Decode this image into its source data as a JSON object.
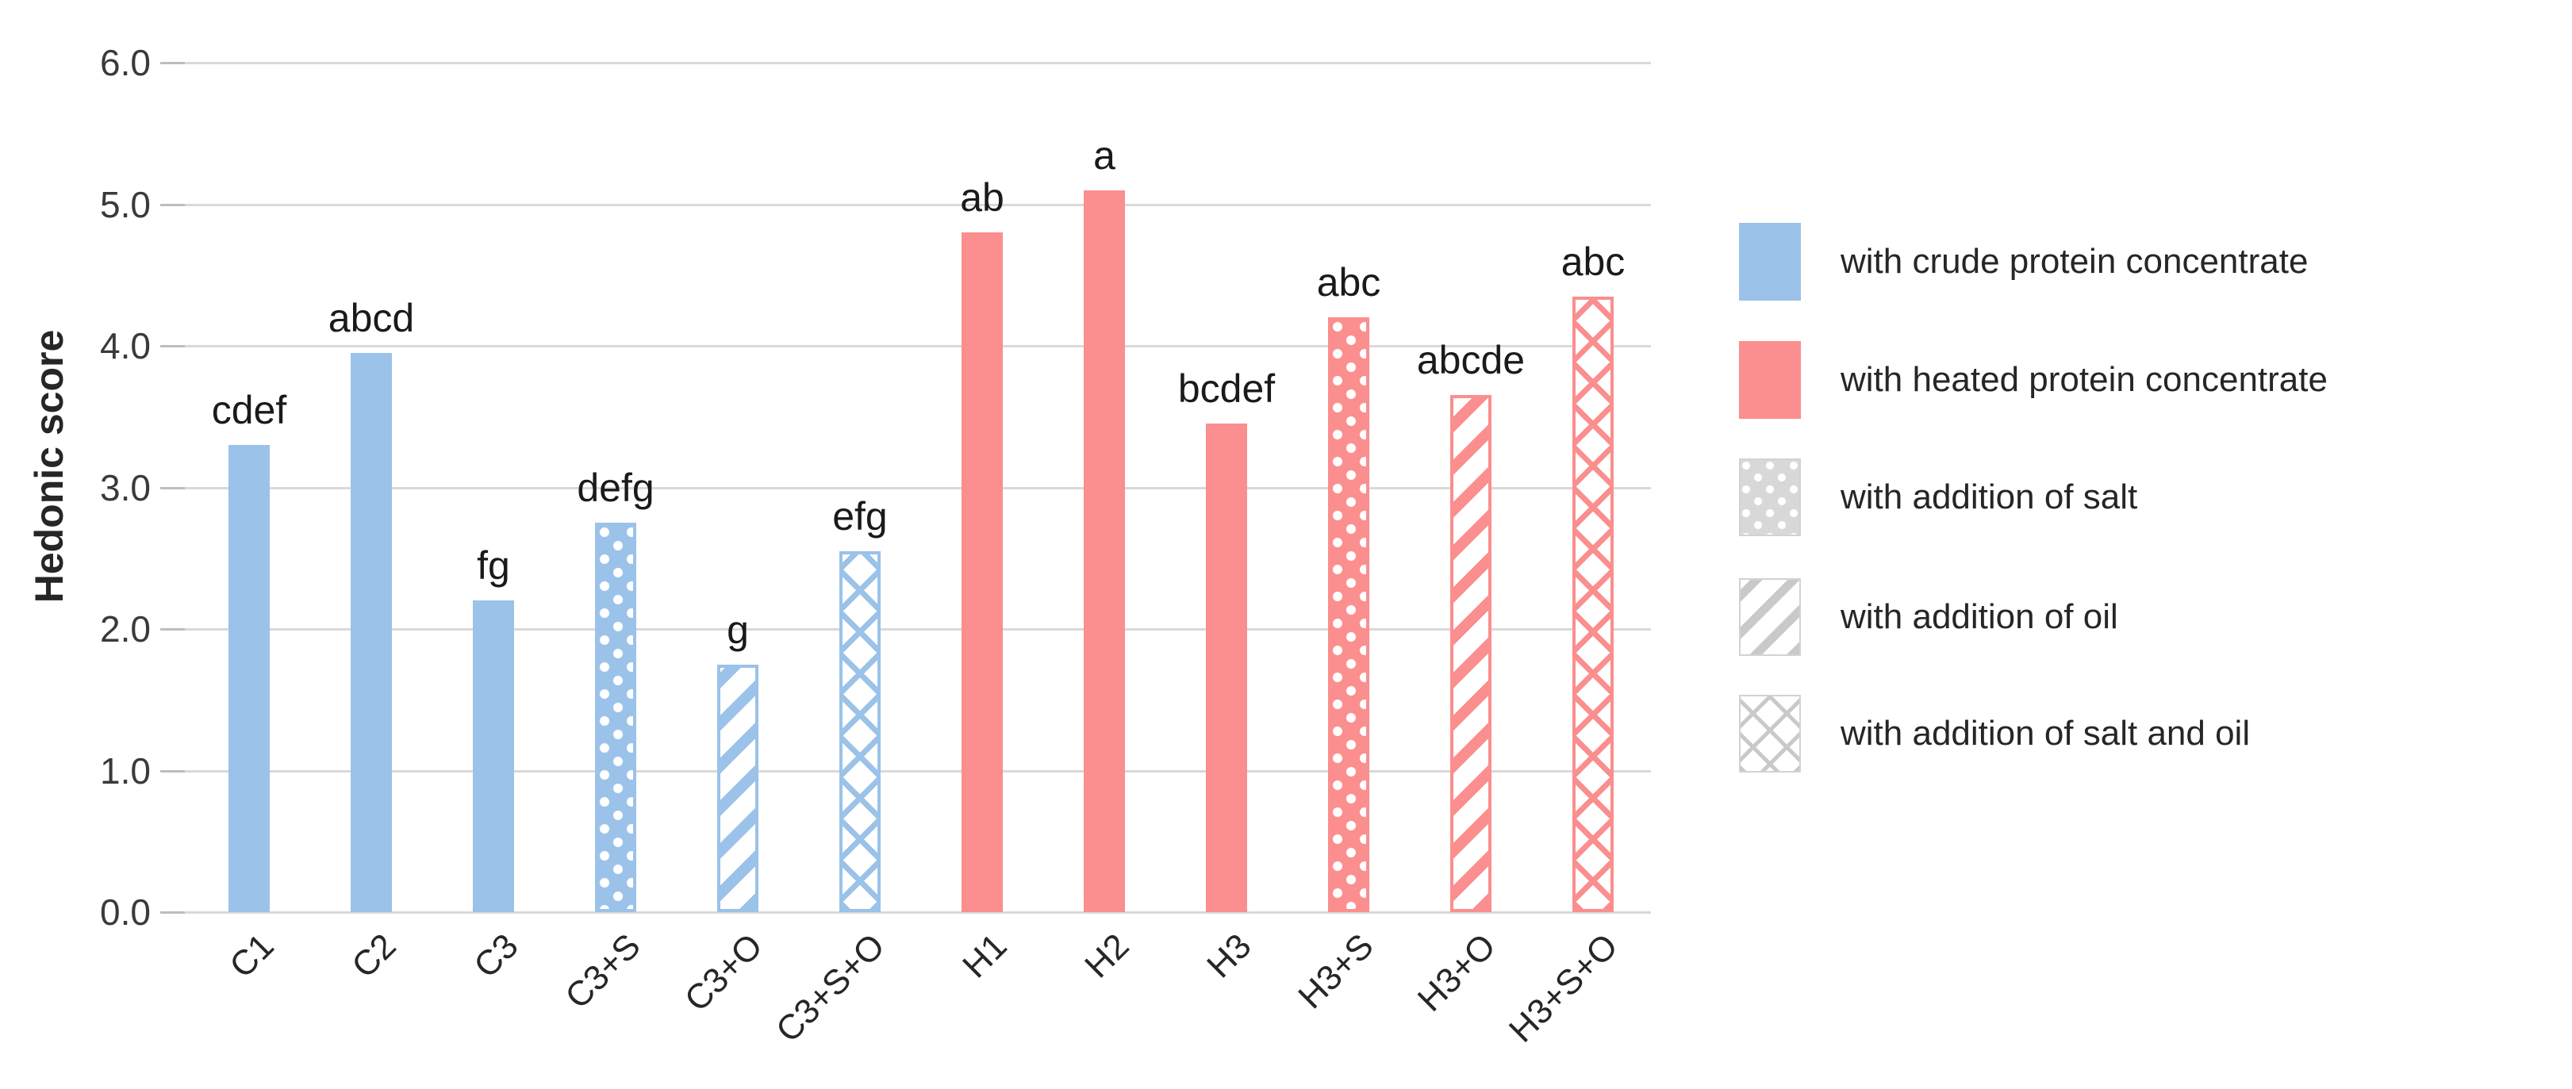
{
  "chart_data": {
    "type": "bar",
    "title": "",
    "ylabel": "Hedonic score",
    "xlabel": "",
    "ylim": [
      0,
      6.0
    ],
    "ytick_step": 1.0,
    "yticks": [
      "0.0",
      "1.0",
      "2.0",
      "3.0",
      "4.0",
      "5.0",
      "6.0"
    ],
    "grid": true,
    "legend_position": "right",
    "categories": [
      "C1",
      "C2",
      "C3",
      "C3+S",
      "C3+O",
      "C3+S+O",
      "H1",
      "H2",
      "H3",
      "H3+S",
      "H3+O",
      "H3+S+O"
    ],
    "values": [
      3.3,
      3.95,
      2.2,
      2.75,
      1.75,
      2.55,
      4.8,
      5.1,
      3.45,
      4.2,
      3.65,
      4.35
    ],
    "significance_labels": [
      "cdef",
      "abcd",
      "fg",
      "defg",
      "g",
      "efg",
      "ab",
      "a",
      "bcdef",
      "abc",
      "abcde",
      "abc"
    ],
    "bar_patterns": [
      "solid",
      "solid",
      "solid",
      "dots",
      "stripes",
      "lattice",
      "solid",
      "solid",
      "solid",
      "dots",
      "stripes",
      "lattice"
    ],
    "bar_color_groups": [
      "blue",
      "blue",
      "blue",
      "blue",
      "blue",
      "blue",
      "red",
      "red",
      "red",
      "red",
      "red",
      "red"
    ],
    "colors": {
      "blue": "#9bc2e8",
      "red": "#fb8e8e",
      "grey_fill": "#d8d8d8",
      "grey_pattern": "#c9c9c9",
      "swatch_border": "#d2d2d2",
      "gridline": "#d9d9d9",
      "axis_tick": "#bdbdbd",
      "tick_text": "#3a3a3a",
      "label_text": "#262626"
    },
    "legend": [
      {
        "label": "with crude protein concentrate",
        "pattern": "solid",
        "color_group": "blue"
      },
      {
        "label": "with heated protein concentrate",
        "pattern": "solid",
        "color_group": "red"
      },
      {
        "label": "with addition of salt",
        "pattern": "dots",
        "color_group": "grey"
      },
      {
        "label": "with addition of oil",
        "pattern": "stripes",
        "color_group": "grey"
      },
      {
        "label": "with addition of salt and oil",
        "pattern": "lattice",
        "color_group": "grey"
      }
    ]
  }
}
